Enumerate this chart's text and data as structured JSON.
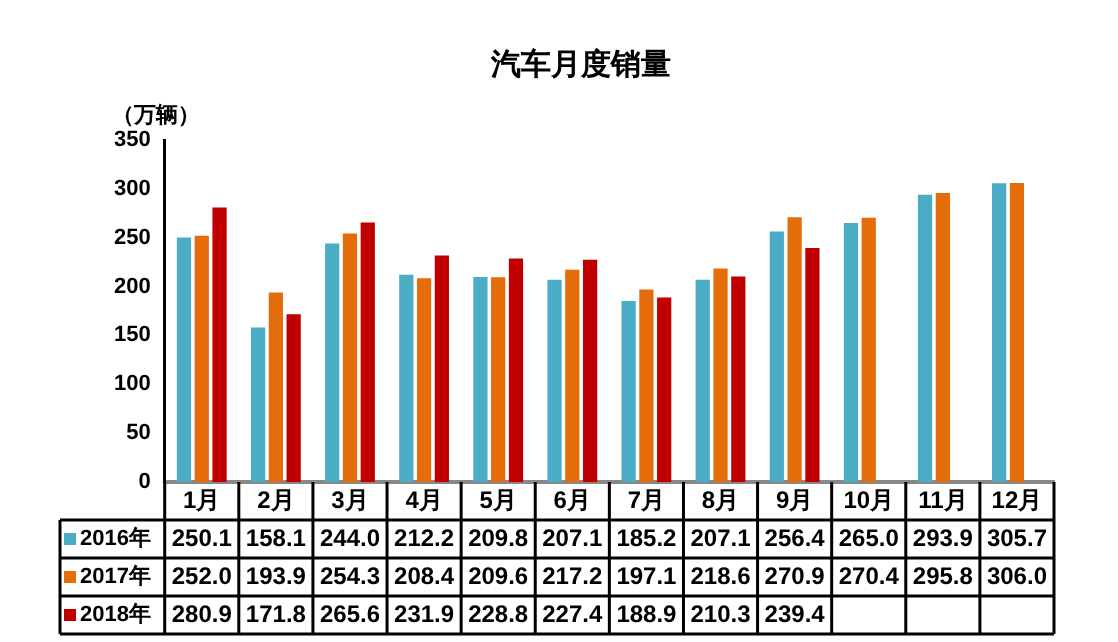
{
  "chart_data": {
    "type": "bar",
    "title": "汽车月度销量",
    "ylabel": "（万辆）",
    "categories": [
      "1月",
      "2月",
      "3月",
      "4月",
      "5月",
      "6月",
      "7月",
      "8月",
      "9月",
      "10月",
      "11月",
      "12月"
    ],
    "ylim": [
      0,
      350
    ],
    "yticks": [
      0,
      50,
      100,
      150,
      200,
      250,
      300,
      350
    ],
    "grid": false,
    "legend": "bottom",
    "series": [
      {
        "name": "2016年",
        "color": "#4bacc6",
        "values": [
          250.1,
          158.1,
          244.0,
          212.2,
          209.8,
          207.1,
          185.2,
          207.1,
          256.4,
          265.0,
          293.9,
          305.7
        ],
        "value_labels": [
          "250.1",
          "158.1",
          "244.0",
          "212.2",
          "209.8",
          "207.1",
          "185.2",
          "207.1",
          "256.4",
          "265.0",
          "293.9",
          "305.7"
        ]
      },
      {
        "name": "2017年",
        "color": "#e46c0a",
        "values": [
          252.0,
          193.9,
          254.3,
          208.4,
          209.6,
          217.2,
          197.1,
          218.6,
          270.9,
          270.4,
          295.8,
          306.0
        ],
        "value_labels": [
          "252.0",
          "193.9",
          "254.3",
          "208.4",
          "209.6",
          "217.2",
          "197.1",
          "218.6",
          "270.9",
          "270.4",
          "295.8",
          "306.0"
        ]
      },
      {
        "name": "2018年",
        "color": "#c00000",
        "values": [
          280.9,
          171.8,
          265.6,
          231.9,
          228.8,
          227.4,
          188.9,
          210.3,
          239.4,
          null,
          null,
          null
        ],
        "value_labels": [
          "280.9",
          "171.8",
          "265.6",
          "231.9",
          "228.8",
          "227.4",
          "188.9",
          "210.3",
          "239.4",
          null,
          null,
          null
        ]
      }
    ]
  }
}
